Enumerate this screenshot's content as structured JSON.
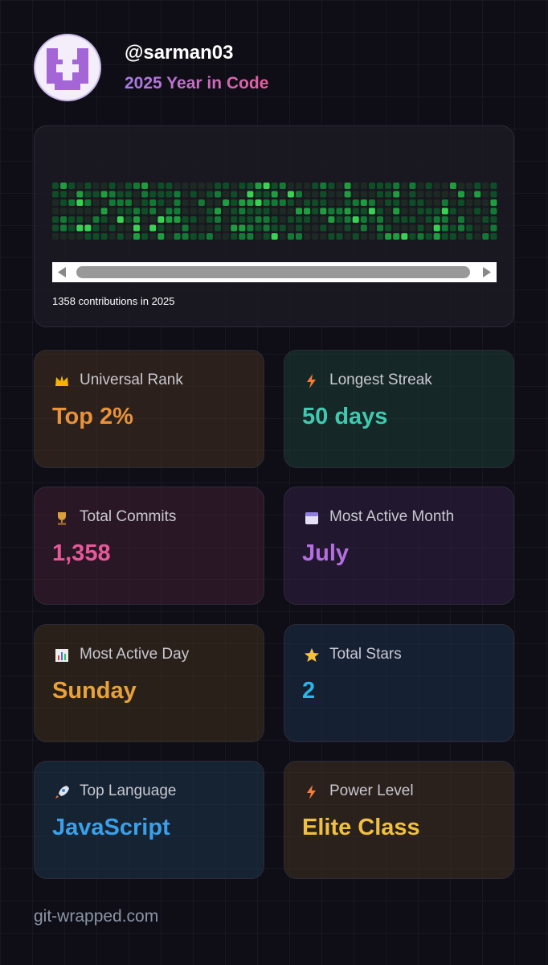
{
  "header": {
    "username": "@sarman03",
    "subtitle": "2025 Year in Code"
  },
  "contributions": {
    "caption": "1358 contributions in 2025"
  },
  "stats": [
    {
      "label": "Universal Rank",
      "value": "Top 2%"
    },
    {
      "label": "Longest Streak",
      "value": "50 days"
    },
    {
      "label": "Total Commits",
      "value": "1,358"
    },
    {
      "label": "Most Active Month",
      "value": "July"
    },
    {
      "label": "Most Active Day",
      "value": "Sunday"
    },
    {
      "label": "Total Stars",
      "value": "2"
    },
    {
      "label": "Top Language",
      "value": "JavaScript"
    },
    {
      "label": "Power Level",
      "value": "Elite Class"
    }
  ],
  "footer": "git-wrapped.com"
}
